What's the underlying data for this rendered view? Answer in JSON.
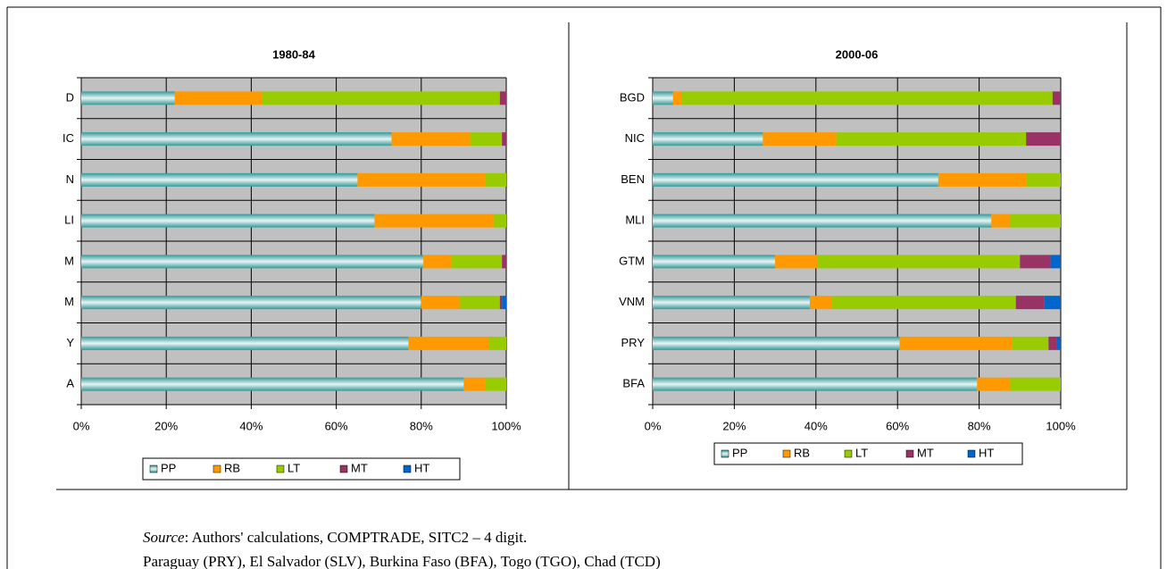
{
  "chart_data": [
    {
      "type": "stacked-bar-horizontal",
      "title": "1980-84",
      "categories": [
        "D",
        "IC",
        "N",
        "LI",
        "M",
        "M",
        "Y",
        "A"
      ],
      "series": [
        {
          "name": "PP",
          "color": "#339999",
          "values": [
            22,
            73,
            65,
            69,
            80.5,
            80,
            77,
            90
          ]
        },
        {
          "name": "RB",
          "color": "#ff9900",
          "values": [
            20.5,
            18.5,
            30,
            28,
            6.5,
            9,
            19,
            5
          ]
        },
        {
          "name": "LT",
          "color": "#99cc00",
          "values": [
            56,
            7.5,
            5,
            3,
            12,
            9.5,
            4,
            5
          ]
        },
        {
          "name": "MT",
          "color": "#993366",
          "values": [
            1.5,
            1,
            0,
            0,
            1,
            0.5,
            0,
            0
          ]
        },
        {
          "name": "HT",
          "color": "#0066cc",
          "values": [
            0,
            0,
            0,
            0,
            0,
            1,
            0,
            0
          ]
        }
      ],
      "xlim": [
        0,
        100
      ],
      "xticks": [
        {
          "value": 0,
          "label": "0%"
        },
        {
          "value": 20,
          "label": "20%"
        },
        {
          "value": 40,
          "label": "40%"
        },
        {
          "value": 60,
          "label": "60%"
        },
        {
          "value": 80,
          "label": "80%"
        },
        {
          "value": 100,
          "label": "100%"
        }
      ],
      "grid": true,
      "legend": "bottom"
    },
    {
      "type": "stacked-bar-horizontal",
      "title": "2000-06",
      "categories": [
        "BGD",
        "NIC",
        "BEN",
        "MLI",
        "GTM",
        "VNM",
        "PRY",
        "BFA"
      ],
      "series": [
        {
          "name": "PP",
          "color": "#339999",
          "values": [
            5,
            27,
            70,
            83,
            30,
            38.5,
            60.5,
            79.5
          ]
        },
        {
          "name": "RB",
          "color": "#ff9900",
          "values": [
            2,
            18,
            21.5,
            4.5,
            10.5,
            5.5,
            27.5,
            8
          ]
        },
        {
          "name": "LT",
          "color": "#99cc00",
          "values": [
            91,
            46.5,
            8.5,
            12.5,
            49.5,
            45,
            9,
            12.5
          ]
        },
        {
          "name": "MT",
          "color": "#993366",
          "values": [
            2,
            8.5,
            0,
            0,
            7.5,
            7,
            2,
            0
          ]
        },
        {
          "name": "HT",
          "color": "#0066cc",
          "values": [
            0,
            0,
            0,
            0,
            2.5,
            4,
            1,
            0
          ]
        }
      ],
      "xlim": [
        0,
        100
      ],
      "xticks": [
        {
          "value": 0,
          "label": "0%"
        },
        {
          "value": 20,
          "label": "20%"
        },
        {
          "value": 40,
          "label": "40%"
        },
        {
          "value": 60,
          "label": "60%"
        },
        {
          "value": 80,
          "label": "80%"
        },
        {
          "value": 100,
          "label": "100%"
        }
      ],
      "grid": true,
      "legend": "bottom"
    }
  ],
  "source_label": "Source",
  "source_text": ": Authors' calculations, COMPTRADE, SITC2 – 4 digit.",
  "note": "Paraguay (PRY), El Salvador (SLV), Burkina Faso (BFA), Togo (TGO), Chad (TCD)"
}
